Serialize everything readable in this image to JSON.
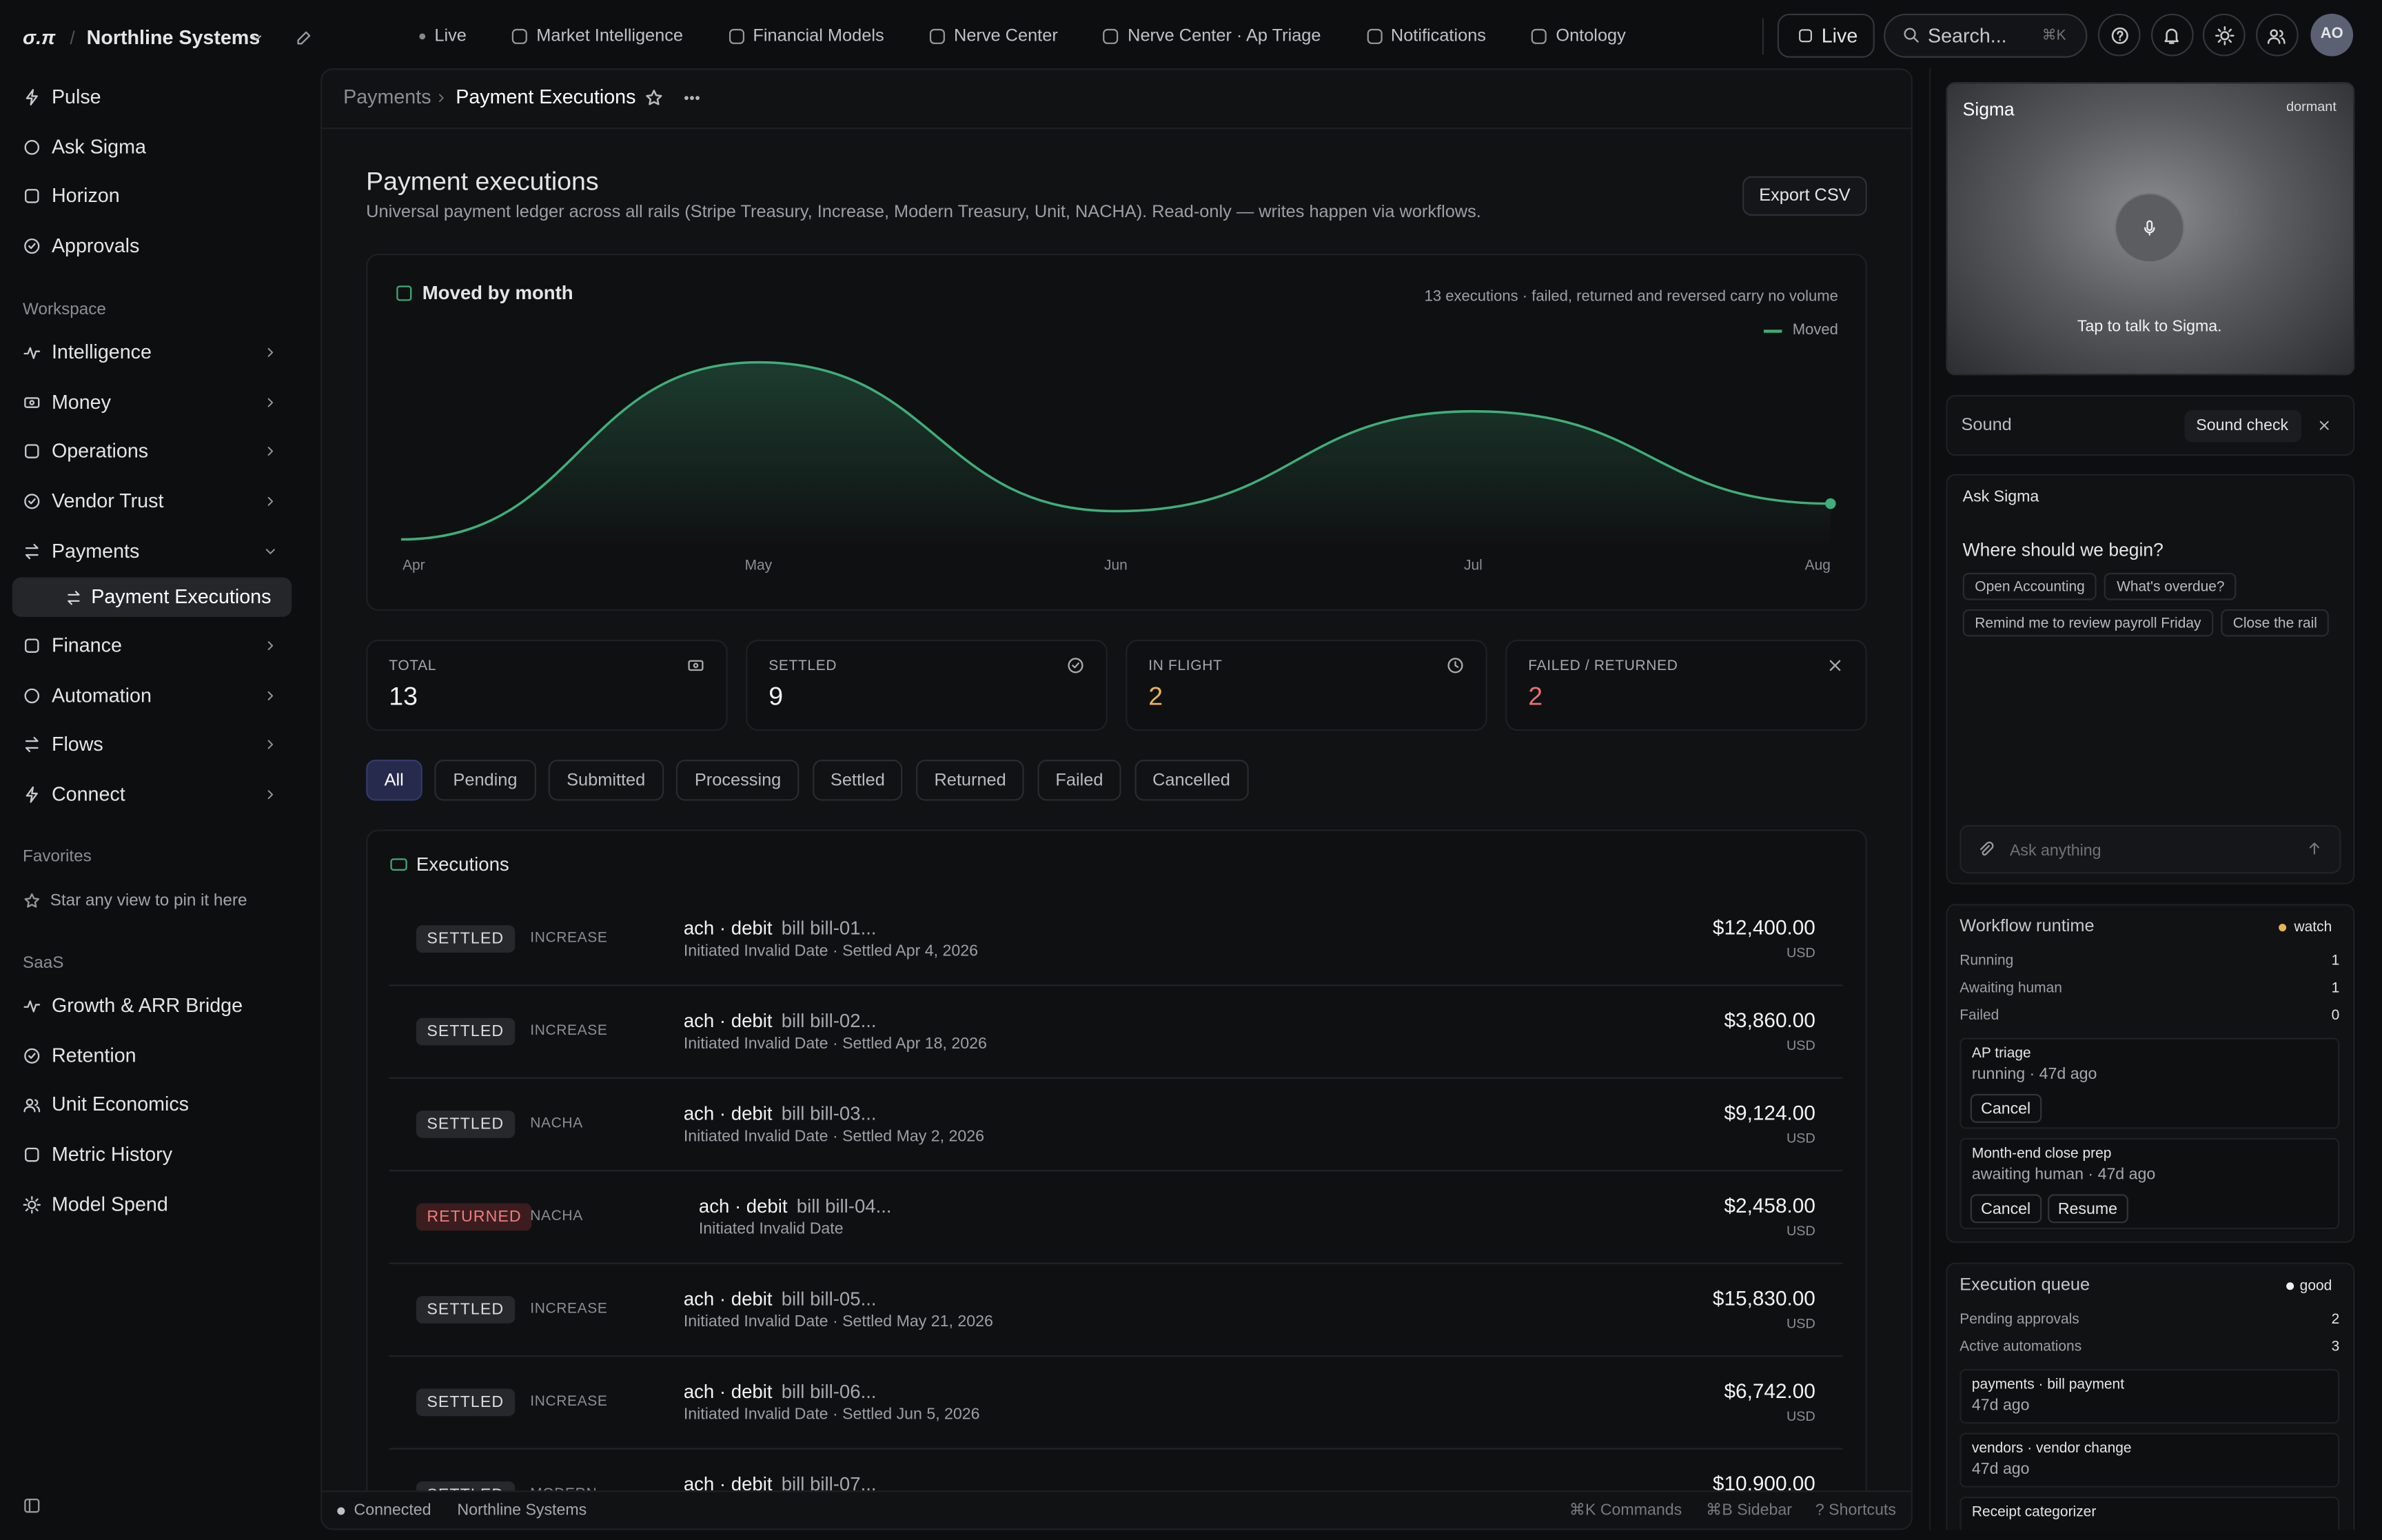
{
  "topbar": {
    "logo": "σ.π",
    "workspace": "Northline Systems",
    "nav": [
      "Live",
      "Market Intelligence",
      "Financial Models",
      "Nerve Center",
      "Nerve Center · Ap Triage",
      "Notifications",
      "Ontology"
    ],
    "live_button": "Live",
    "search": "Search...",
    "search_shortcut": "⌘K",
    "avatar": "AO"
  },
  "sidebar": {
    "primary": [
      "Pulse",
      "Ask Sigma",
      "Horizon",
      "Approvals"
    ],
    "workspace_label": "Workspace",
    "workspace": [
      "Intelligence",
      "Money",
      "Operations",
      "Vendor Trust",
      "Payments"
    ],
    "payments_children": [
      "Payment Executions"
    ],
    "workspace_more": [
      "Finance",
      "Automation",
      "Flows",
      "Connect"
    ],
    "favorites_label": "Favorites",
    "favorites_empty": "Star any view to pin it here",
    "saas_label": "SaaS",
    "saas": [
      "Growth & ARR Bridge",
      "Retention",
      "Unit Economics",
      "Metric History",
      "Model Spend"
    ]
  },
  "breadcrumb": [
    "Payments",
    "Payment Executions"
  ],
  "header": {
    "title": "Payment executions",
    "subtitle": "Universal payment ledger across all rails (Stripe Treasury, Increase, Modern Treasury, Unit, NACHA). Read-only — writes happen via workflows.",
    "export": "Export CSV"
  },
  "chart": {
    "type": "area",
    "title": "Moved by month",
    "note": "13 executions · failed, returned and reversed carry no volume",
    "legend": "Moved",
    "categories": [
      "Apr",
      "May",
      "Jun",
      "Jul",
      "Aug"
    ],
    "values": [
      4,
      98,
      19,
      72,
      23
    ],
    "ylim": [
      0,
      100
    ],
    "color": "#3fae78"
  },
  "stats": [
    {
      "label": "TOTAL",
      "value": 13
    },
    {
      "label": "SETTLED",
      "value": 9
    },
    {
      "label": "IN FLIGHT",
      "value": 2
    },
    {
      "label": "FAILED / RETURNED",
      "value": 2
    }
  ],
  "filters": [
    "All",
    "Pending",
    "Submitted",
    "Processing",
    "Settled",
    "Returned",
    "Failed",
    "Cancelled"
  ],
  "executions": {
    "title": "Executions",
    "rows": [
      {
        "status": "SETTLED",
        "rail": "INCREASE",
        "method": "ach · debit",
        "ref": "bill bill-01...",
        "meta": "Initiated Invalid Date · Settled Apr 4, 2026",
        "amount": "$12,400.00",
        "currency": "USD"
      },
      {
        "status": "SETTLED",
        "rail": "INCREASE",
        "method": "ach · debit",
        "ref": "bill bill-02...",
        "meta": "Initiated Invalid Date · Settled Apr 18, 2026",
        "amount": "$3,860.00",
        "currency": "USD"
      },
      {
        "status": "SETTLED",
        "rail": "NACHA",
        "method": "ach · debit",
        "ref": "bill bill-03...",
        "meta": "Initiated Invalid Date · Settled May 2, 2026",
        "amount": "$9,124.00",
        "currency": "USD"
      },
      {
        "status": "RETURNED",
        "rail": "NACHA",
        "method": "ach · debit",
        "ref": "bill bill-04...",
        "meta": "Initiated Invalid Date",
        "amount": "$2,458.00",
        "currency": "USD"
      },
      {
        "status": "SETTLED",
        "rail": "INCREASE",
        "method": "ach · debit",
        "ref": "bill bill-05...",
        "meta": "Initiated Invalid Date · Settled May 21, 2026",
        "amount": "$15,830.00",
        "currency": "USD"
      },
      {
        "status": "SETTLED",
        "rail": "INCREASE",
        "method": "ach · debit",
        "ref": "bill bill-06...",
        "meta": "Initiated Invalid Date · Settled Jun 5, 2026",
        "amount": "$6,742.00",
        "currency": "USD"
      },
      {
        "status": "SETTLED",
        "rail": "MODERN",
        "method": "ach · debit",
        "ref": "bill bill-07...",
        "amount": "$10,900.00",
        "currency": "USD"
      }
    ]
  },
  "statusbar": {
    "connection": "Connected",
    "workspace": "Northline Systems",
    "shortcuts": [
      "⌘K Commands",
      "⌘B Sidebar",
      "? Shortcuts"
    ]
  },
  "sigma": {
    "title": "Sigma",
    "state": "dormant",
    "hint": "Tap to talk to Sigma."
  },
  "sound": {
    "label": "Sound",
    "button": "Sound check"
  },
  "ask": {
    "title": "Ask Sigma",
    "prompt": "Where should we begin?",
    "chips": [
      [
        "Open Accounting",
        "What's overdue?"
      ],
      [
        "Remind me to review payroll Friday",
        "Close the rail"
      ]
    ],
    "placeholder": "Ask anything"
  },
  "workflow": {
    "title": "Workflow runtime",
    "badge": "watch",
    "stats": [
      {
        "label": "Running",
        "value": 1
      },
      {
        "label": "Awaiting human",
        "value": 1
      },
      {
        "label": "Failed",
        "value": 0
      }
    ],
    "items": [
      {
        "name": "AP triage",
        "status": "running · 47d ago",
        "actions": [
          "Cancel"
        ]
      },
      {
        "name": "Month-end close prep",
        "status": "awaiting human · 47d ago",
        "actions": [
          "Cancel",
          "Resume"
        ]
      }
    ]
  },
  "queue": {
    "title": "Execution queue",
    "badge": "good",
    "stats": [
      {
        "label": "Pending approvals",
        "value": 2
      },
      {
        "label": "Active automations",
        "value": 3
      }
    ],
    "items": [
      {
        "name": "payments · bill payment",
        "age": "47d ago"
      },
      {
        "name": "vendors · vendor change",
        "age": "47d ago"
      },
      {
        "name": "Receipt categorizer"
      }
    ]
  }
}
